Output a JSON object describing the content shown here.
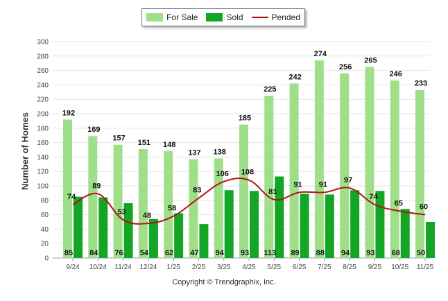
{
  "legend": {
    "for_sale": "For Sale",
    "sold": "Sold",
    "pended": "Pended"
  },
  "colors": {
    "for_sale": "#a0df8a",
    "sold": "#12a624",
    "pended": "#b31212"
  },
  "copyright": "Copyright © Trendgraphix, Inc.",
  "chart_data": {
    "type": "bar",
    "title": "",
    "xlabel": "",
    "ylabel": "Number of Homes",
    "ylim": [
      0,
      300
    ],
    "yticks": [
      0,
      20,
      40,
      60,
      80,
      100,
      120,
      140,
      160,
      180,
      200,
      220,
      240,
      260,
      280,
      300
    ],
    "grid": true,
    "legend_position": "top-center",
    "categories": [
      "9/24",
      "10/24",
      "11/24",
      "12/24",
      "1/25",
      "2/25",
      "3/25",
      "4/25",
      "5/25",
      "6/25",
      "7/25",
      "8/25",
      "9/25",
      "10/25",
      "11/25"
    ],
    "series": [
      {
        "name": "For Sale",
        "type": "bar",
        "values": [
          192,
          169,
          157,
          151,
          148,
          137,
          138,
          185,
          225,
          242,
          274,
          256,
          265,
          246,
          233
        ]
      },
      {
        "name": "Sold",
        "type": "bar",
        "values": [
          85,
          84,
          76,
          54,
          62,
          47,
          94,
          93,
          113,
          89,
          88,
          94,
          93,
          68,
          50
        ]
      },
      {
        "name": "Pended",
        "type": "line",
        "values": [
          74,
          89,
          53,
          48,
          58,
          83,
          106,
          108,
          81,
          91,
          91,
          97,
          74,
          65,
          60
        ]
      }
    ]
  }
}
